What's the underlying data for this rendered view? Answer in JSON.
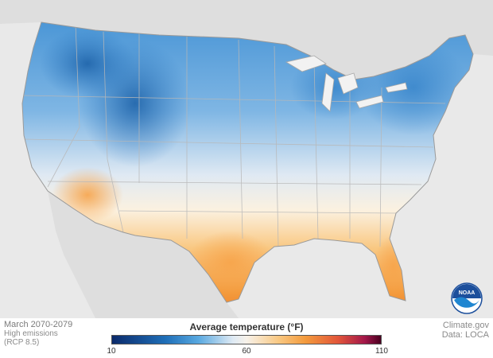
{
  "footer": {
    "period": "March 2070-2079",
    "scenario_line1": "High emissions",
    "scenario_line2": "(RCP 8.5)",
    "credit": "Climate.gov",
    "source": "Data: LOCA"
  },
  "legend": {
    "title": "Average temperature (°F)",
    "ticks": [
      {
        "value": 10,
        "label": "10"
      },
      {
        "value": 60,
        "label": "60"
      },
      {
        "value": 110,
        "label": "110"
      }
    ],
    "range": [
      10,
      110
    ]
  },
  "logo": {
    "name": "noaa-logo",
    "text": "NOAA"
  },
  "colors": {
    "land": "#d9d9d9",
    "cold": "#1f6fb8",
    "mid": "#f5f5f5",
    "warm": "#f39a3c",
    "hot": "#4a0020"
  }
}
